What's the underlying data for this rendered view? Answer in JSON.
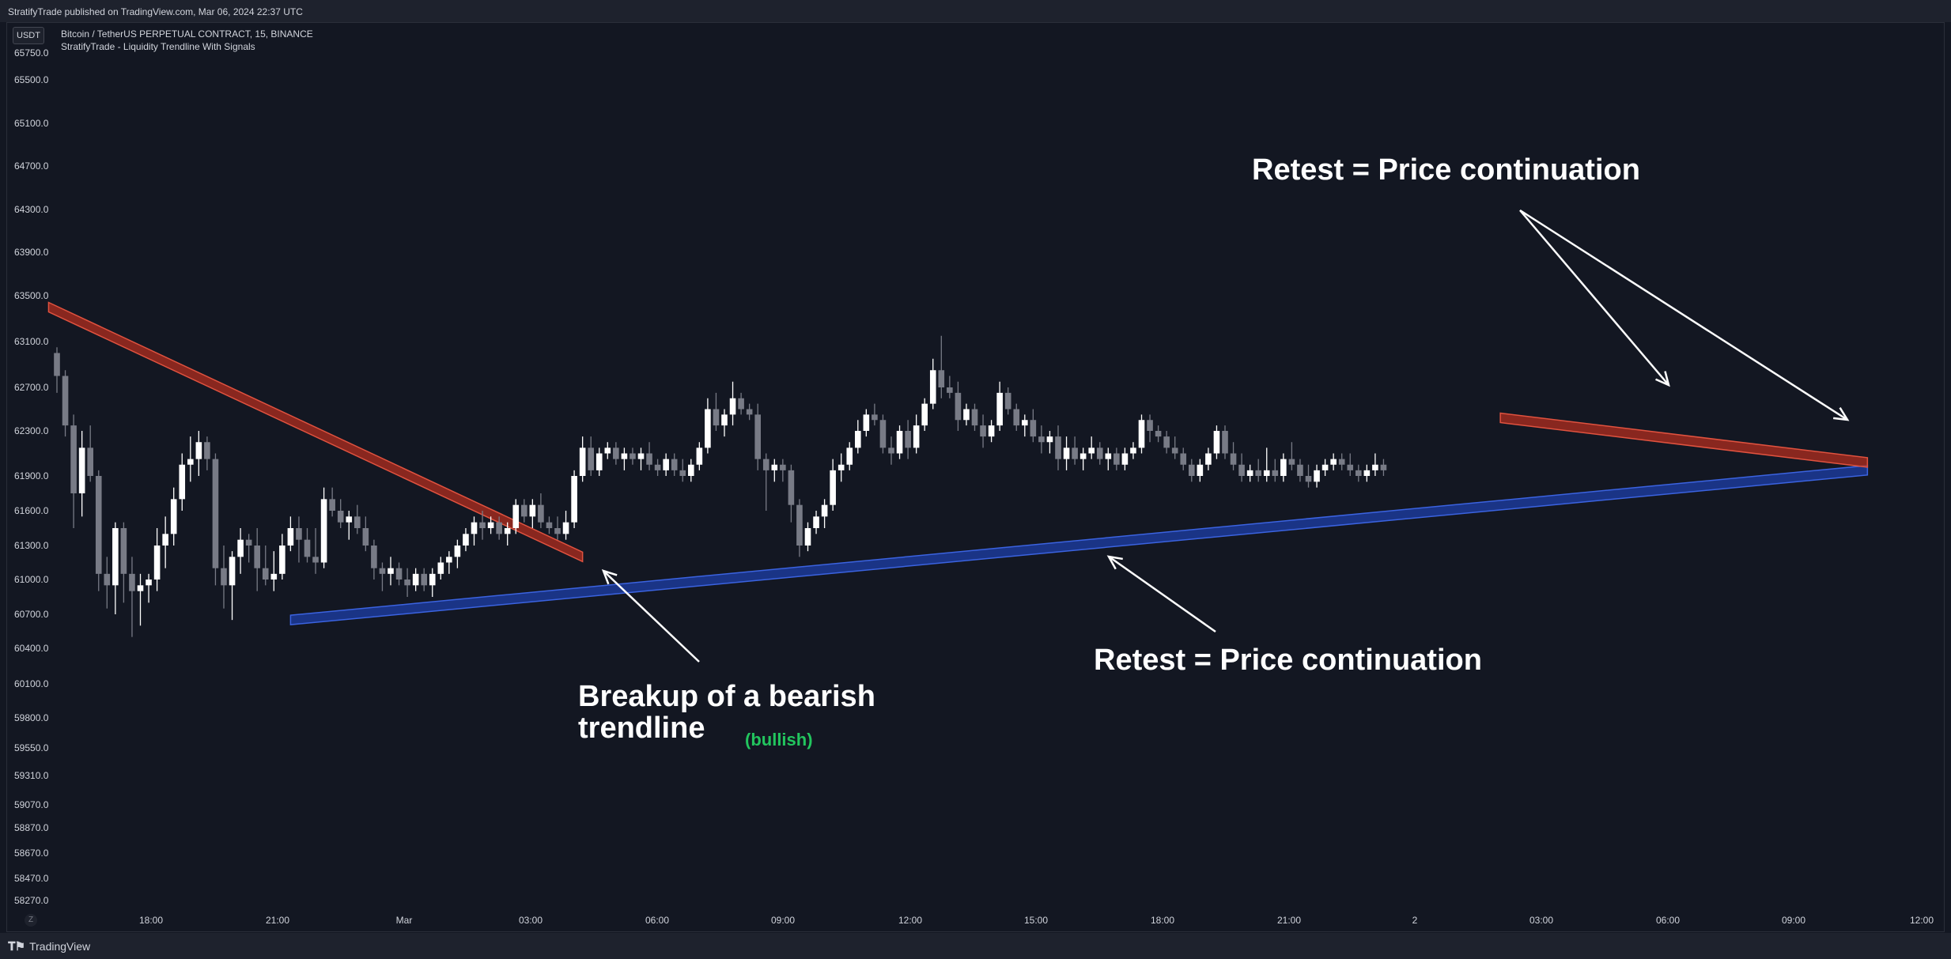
{
  "header": {
    "publish_line": "StratifyTrade published on TradingView.com, Mar 06, 2024 22:37 UTC"
  },
  "symbol": {
    "currency_button": "USDT",
    "title": "Bitcoin / TetherUS PERPETUAL CONTRACT, 15, BINANCE",
    "indicator": "StratifyTrade - Liquidity Trendline With Signals"
  },
  "footer": {
    "brand": "TradingView",
    "scale_button": "Z"
  },
  "colors": {
    "background": "#131722",
    "bear_line": "#b22d1f",
    "bull_line": "#1e3fa8",
    "bull_text": "#22c55e"
  },
  "chart_data": {
    "type": "candlestick",
    "y_tick_labels": [
      "65750.0",
      "65500.0",
      "65100.0",
      "64700.0",
      "64300.0",
      "63900.0",
      "63500.0",
      "63100.0",
      "62700.0",
      "62300.0",
      "61900.0",
      "61600.0",
      "61300.0",
      "61000.0",
      "60700.0",
      "60400.0",
      "60100.0",
      "59800.0",
      "59550.0",
      "59310.0",
      "59070.0",
      "58870.0",
      "58670.0",
      "58470.0",
      "58270.0"
    ],
    "x_tick_labels": [
      "18:00",
      "21:00",
      "Mar",
      "03:00",
      "06:00",
      "09:00",
      "12:00",
      "15:00",
      "18:00",
      "21:00",
      "2",
      "03:00",
      "06:00",
      "09:00",
      "12:00"
    ],
    "trendlines": [
      {
        "name": "bearish-trendline-1",
        "kind": "bearish",
        "from": {
          "bar": -1,
          "price": 63400
        },
        "to": {
          "bar": 63,
          "price": 61200
        }
      },
      {
        "name": "bullish-trendline",
        "kind": "bullish",
        "from": {
          "bar": 28,
          "price": 60650
        },
        "to": {
          "bar": 217,
          "price": 61950
        }
      },
      {
        "name": "bearish-trendline-2",
        "kind": "bearish",
        "from": {
          "bar": 173,
          "price": 62420
        },
        "to": {
          "bar": 217,
          "price": 62020
        }
      }
    ],
    "annotations": [
      {
        "name": "annotation-breakup-line1",
        "text": "Breakup of a bearish"
      },
      {
        "name": "annotation-breakup-line2",
        "text": "trendline"
      },
      {
        "name": "annotation-bullish",
        "text": "(bullish)"
      },
      {
        "name": "annotation-retest-top",
        "text": "Retest = Price continuation"
      },
      {
        "name": "annotation-retest-bottom",
        "text": "Retest = Price continuation"
      }
    ],
    "candles": [
      [
        63000,
        63050,
        62650,
        62800
      ],
      [
        62800,
        62850,
        62250,
        62350
      ],
      [
        62350,
        62450,
        61450,
        61750
      ],
      [
        61750,
        62300,
        61550,
        62150
      ],
      [
        62150,
        62350,
        61850,
        61900
      ],
      [
        61900,
        61950,
        60900,
        61050
      ],
      [
        61050,
        61200,
        60750,
        60950
      ],
      [
        60950,
        61500,
        60700,
        61450
      ],
      [
        61450,
        61500,
        60800,
        61050
      ],
      [
        61050,
        61200,
        60500,
        60900
      ],
      [
        60900,
        61050,
        60600,
        60950
      ],
      [
        60950,
        61050,
        60800,
        61000
      ],
      [
        61000,
        61450,
        60900,
        61300
      ],
      [
        61300,
        61550,
        61100,
        61400
      ],
      [
        61400,
        61800,
        61300,
        61700
      ],
      [
        61700,
        62100,
        61600,
        62000
      ],
      [
        62000,
        62250,
        61850,
        62050
      ],
      [
        62050,
        62300,
        61900,
        62200
      ],
      [
        62200,
        62250,
        61950,
        62050
      ],
      [
        62050,
        62100,
        60950,
        61100
      ],
      [
        61100,
        61300,
        60750,
        60950
      ],
      [
        60950,
        61250,
        60650,
        61200
      ],
      [
        61200,
        61450,
        61050,
        61350
      ],
      [
        61350,
        61400,
        61150,
        61300
      ],
      [
        61300,
        61450,
        60900,
        61100
      ],
      [
        61100,
        61300,
        60950,
        61000
      ],
      [
        61000,
        61250,
        60900,
        61050
      ],
      [
        61050,
        61400,
        61000,
        61300
      ],
      [
        61300,
        61550,
        61250,
        61450
      ],
      [
        61450,
        61550,
        61150,
        61350
      ],
      [
        61350,
        61450,
        61150,
        61200
      ],
      [
        61200,
        61450,
        61050,
        61150
      ],
      [
        61150,
        61800,
        61100,
        61700
      ],
      [
        61700,
        61800,
        61550,
        61600
      ],
      [
        61600,
        61700,
        61450,
        61500
      ],
      [
        61500,
        61600,
        61350,
        61550
      ],
      [
        61550,
        61650,
        61400,
        61450
      ],
      [
        61450,
        61550,
        61250,
        61300
      ],
      [
        61300,
        61350,
        61000,
        61100
      ],
      [
        61100,
        61150,
        60900,
        61050
      ],
      [
        61050,
        61200,
        60950,
        61100
      ],
      [
        61100,
        61150,
        60950,
        61000
      ],
      [
        61000,
        61100,
        60850,
        60950
      ],
      [
        60950,
        61100,
        60900,
        61050
      ],
      [
        61050,
        61100,
        60900,
        60950
      ],
      [
        60950,
        61100,
        60850,
        61050
      ],
      [
        61050,
        61200,
        61000,
        61150
      ],
      [
        61150,
        61250,
        61050,
        61200
      ],
      [
        61200,
        61350,
        61100,
        61300
      ],
      [
        61300,
        61450,
        61250,
        61400
      ],
      [
        61400,
        61550,
        61300,
        61500
      ],
      [
        61500,
        61600,
        61350,
        61450
      ],
      [
        61450,
        61550,
        61400,
        61500
      ],
      [
        61500,
        61550,
        61350,
        61400
      ],
      [
        61400,
        61500,
        61300,
        61450
      ],
      [
        61450,
        61700,
        61400,
        61650
      ],
      [
        61650,
        61700,
        61500,
        61550
      ],
      [
        61550,
        61700,
        61450,
        61650
      ],
      [
        61650,
        61750,
        61450,
        61500
      ],
      [
        61500,
        61550,
        61400,
        61450
      ],
      [
        61450,
        61550,
        61350,
        61400
      ],
      [
        61400,
        61600,
        61350,
        61500
      ],
      [
        61500,
        61950,
        61450,
        61900
      ],
      [
        61900,
        62250,
        61850,
        62150
      ],
      [
        62150,
        62250,
        61900,
        61950
      ],
      [
        61950,
        62150,
        61900,
        62100
      ],
      [
        62100,
        62200,
        62050,
        62150
      ],
      [
        62150,
        62200,
        62000,
        62050
      ],
      [
        62050,
        62150,
        61950,
        62100
      ],
      [
        62100,
        62150,
        62000,
        62050
      ],
      [
        62050,
        62150,
        61950,
        62100
      ],
      [
        62100,
        62200,
        61950,
        62000
      ],
      [
        62000,
        62050,
        61900,
        61950
      ],
      [
        61950,
        62100,
        61900,
        62050
      ],
      [
        62050,
        62100,
        61900,
        61950
      ],
      [
        61950,
        62050,
        61850,
        61900
      ],
      [
        61900,
        62050,
        61850,
        62000
      ],
      [
        62000,
        62200,
        61950,
        62150
      ],
      [
        62150,
        62600,
        62100,
        62500
      ],
      [
        62500,
        62650,
        62300,
        62350
      ],
      [
        62350,
        62500,
        62250,
        62450
      ],
      [
        62450,
        62750,
        62350,
        62600
      ],
      [
        62600,
        62650,
        62450,
        62500
      ],
      [
        62500,
        62550,
        62400,
        62450
      ],
      [
        62450,
        62550,
        61950,
        62050
      ],
      [
        62050,
        62100,
        61600,
        61950
      ],
      [
        61950,
        62050,
        61850,
        62000
      ],
      [
        62000,
        62050,
        61850,
        61950
      ],
      [
        61950,
        62000,
        61500,
        61650
      ],
      [
        61650,
        61700,
        61200,
        61300
      ],
      [
        61300,
        61500,
        61250,
        61450
      ],
      [
        61450,
        61600,
        61400,
        61550
      ],
      [
        61550,
        61700,
        61450,
        61650
      ],
      [
        61650,
        62050,
        61600,
        61950
      ],
      [
        61950,
        62100,
        61850,
        62000
      ],
      [
        62000,
        62200,
        61950,
        62150
      ],
      [
        62150,
        62400,
        62100,
        62300
      ],
      [
        62300,
        62500,
        62250,
        62450
      ],
      [
        62450,
        62550,
        62350,
        62400
      ],
      [
        62400,
        62450,
        62100,
        62150
      ],
      [
        62150,
        62250,
        62000,
        62100
      ],
      [
        62100,
        62350,
        62050,
        62300
      ],
      [
        62300,
        62400,
        62050,
        62150
      ],
      [
        62150,
        62450,
        62100,
        62350
      ],
      [
        62350,
        62600,
        62300,
        62550
      ],
      [
        62550,
        62950,
        62500,
        62850
      ],
      [
        62850,
        63150,
        62600,
        62700
      ],
      [
        62700,
        62800,
        62600,
        62650
      ],
      [
        62650,
        62750,
        62300,
        62400
      ],
      [
        62400,
        62550,
        62350,
        62500
      ],
      [
        62500,
        62550,
        62300,
        62350
      ],
      [
        62350,
        62450,
        62150,
        62250
      ],
      [
        62250,
        62400,
        62200,
        62350
      ],
      [
        62350,
        62750,
        62300,
        62650
      ],
      [
        62650,
        62700,
        62450,
        62500
      ],
      [
        62500,
        62550,
        62300,
        62350
      ],
      [
        62350,
        62450,
        62250,
        62400
      ],
      [
        62400,
        62500,
        62200,
        62250
      ],
      [
        62250,
        62350,
        62100,
        62200
      ],
      [
        62200,
        62300,
        62100,
        62250
      ],
      [
        62250,
        62350,
        61950,
        62050
      ],
      [
        62050,
        62250,
        61950,
        62150
      ],
      [
        62150,
        62250,
        62000,
        62050
      ],
      [
        62050,
        62150,
        61950,
        62100
      ],
      [
        62100,
        62250,
        62050,
        62150
      ],
      [
        62150,
        62200,
        62000,
        62050
      ],
      [
        62050,
        62150,
        61950,
        62100
      ],
      [
        62100,
        62150,
        61950,
        62000
      ],
      [
        62000,
        62150,
        61950,
        62100
      ],
      [
        62100,
        62200,
        62050,
        62150
      ],
      [
        62150,
        62450,
        62100,
        62400
      ],
      [
        62400,
        62450,
        62200,
        62300
      ],
      [
        62300,
        62350,
        62200,
        62250
      ],
      [
        62250,
        62300,
        62100,
        62150
      ],
      [
        62150,
        62250,
        62050,
        62100
      ],
      [
        62100,
        62150,
        61950,
        62000
      ],
      [
        62000,
        62050,
        61850,
        61900
      ],
      [
        61900,
        62050,
        61850,
        62000
      ],
      [
        62000,
        62150,
        61950,
        62100
      ],
      [
        62100,
        62350,
        62050,
        62300
      ],
      [
        62300,
        62350,
        62050,
        62100
      ],
      [
        62100,
        62200,
        61950,
        62000
      ],
      [
        62000,
        62100,
        61850,
        61900
      ],
      [
        61900,
        62000,
        61850,
        61950
      ],
      [
        61950,
        62050,
        61850,
        61900
      ],
      [
        61900,
        62150,
        61850,
        61950
      ],
      [
        61950,
        62050,
        61850,
        61900
      ],
      [
        61900,
        62100,
        61850,
        62050
      ],
      [
        62050,
        62200,
        61950,
        62000
      ],
      [
        62000,
        62050,
        61850,
        61900
      ],
      [
        61900,
        62000,
        61800,
        61850
      ],
      [
        61850,
        62000,
        61800,
        61950
      ],
      [
        61950,
        62050,
        61900,
        62000
      ],
      [
        62000,
        62100,
        61950,
        62050
      ],
      [
        62050,
        62100,
        61950,
        62000
      ],
      [
        62000,
        62100,
        61900,
        61950
      ],
      [
        61950,
        62000,
        61850,
        61900
      ],
      [
        61900,
        62000,
        61850,
        61950
      ],
      [
        61950,
        62100,
        61900,
        62000
      ],
      [
        62000,
        62050,
        61900,
        61950
      ]
    ]
  }
}
